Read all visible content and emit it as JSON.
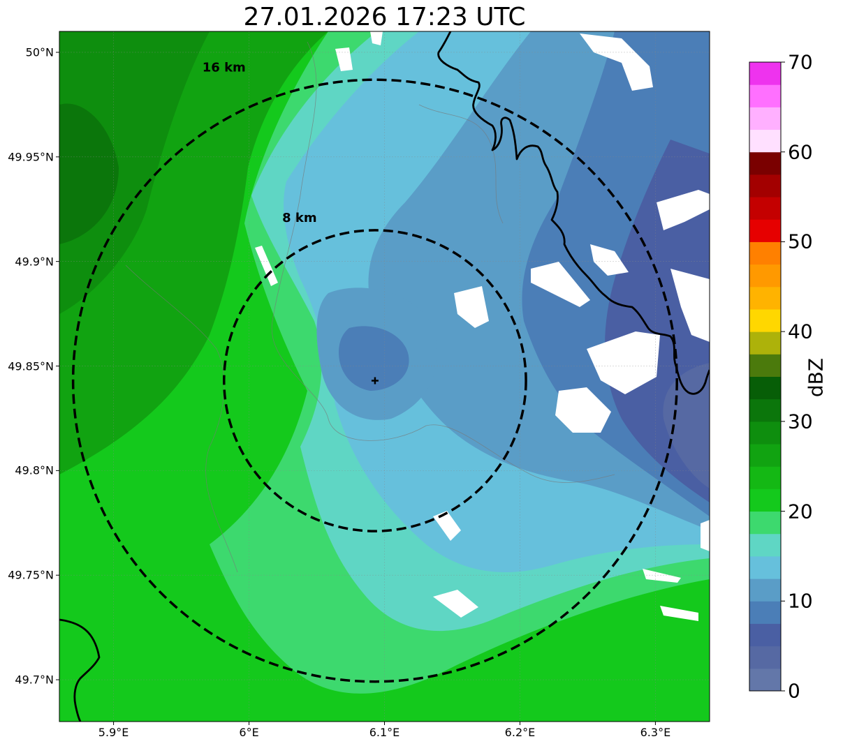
{
  "title": "27.01.2026 17:23 UTC",
  "map": {
    "lon_range": [
      5.86,
      6.34
    ],
    "lat_range": [
      49.68,
      50.01
    ],
    "radar_site": {
      "lon": 6.093,
      "lat": 49.843
    },
    "rings": [
      {
        "label": "8 km",
        "radius_km": 8
      },
      {
        "label": "16 km",
        "radius_km": 16
      }
    ],
    "lat_ticks": [
      {
        "value": 50.0,
        "label": "50°N"
      },
      {
        "value": 49.95,
        "label": "49.95°N"
      },
      {
        "value": 49.9,
        "label": "49.9°N"
      },
      {
        "value": 49.85,
        "label": "49.85°N"
      },
      {
        "value": 49.8,
        "label": "49.8°N"
      },
      {
        "value": 49.75,
        "label": "49.75°N"
      },
      {
        "value": 49.7,
        "label": "49.7°N"
      }
    ],
    "lon_ticks": [
      {
        "value": 5.9,
        "label": "5.9°E"
      },
      {
        "value": 6.0,
        "label": "6°E"
      },
      {
        "value": 6.1,
        "label": "6.1°E"
      },
      {
        "value": 6.2,
        "label": "6.2°E"
      },
      {
        "value": 6.3,
        "label": "6.3°E"
      }
    ]
  },
  "colorbar": {
    "label": "dBZ",
    "min": 0,
    "max": 70,
    "ticks": [
      {
        "value": 0,
        "label": "0"
      },
      {
        "value": 10,
        "label": "10"
      },
      {
        "value": 20,
        "label": "20"
      },
      {
        "value": 30,
        "label": "30"
      },
      {
        "value": 40,
        "label": "40"
      },
      {
        "value": 50,
        "label": "50"
      },
      {
        "value": 60,
        "label": "60"
      },
      {
        "value": 70,
        "label": "70"
      }
    ],
    "colors": [
      "#6377a9",
      "#5669a3",
      "#4a5fa3",
      "#4b7eb7",
      "#5a9dc7",
      "#66c0dc",
      "#5fd6c4",
      "#3dd96e",
      "#14c91c",
      "#14b814",
      "#11a311",
      "#0e8e0e",
      "#0b760b",
      "#075e07",
      "#4b7a0c",
      "#adb20a",
      "#ffd700",
      "#ffb300",
      "#ff9900",
      "#ff8000",
      "#e60000",
      "#c40000",
      "#a30000",
      "#7a0000",
      "#ffe0ff",
      "#ffb0ff",
      "#ff70ff",
      "#ee33ee"
    ]
  }
}
